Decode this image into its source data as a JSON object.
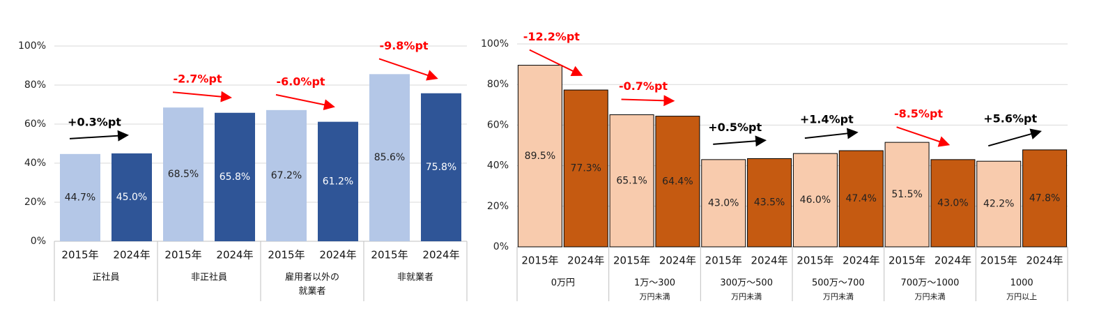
{
  "chart_data": [
    {
      "type": "bar",
      "categories": [
        [
          "正社員"
        ],
        [
          "非正社員"
        ],
        [
          "雇用者以外の",
          "就業者"
        ],
        [
          "非就業者"
        ]
      ],
      "series": [
        {
          "name": "2015年",
          "color": "#b4c7e7",
          "label_color": "#222222",
          "values": [
            44.7,
            68.5,
            67.2,
            85.6
          ],
          "value_labels": [
            "44.7%",
            "68.5%",
            "67.2%",
            "85.6%"
          ]
        },
        {
          "name": "2024年",
          "color": "#2f5597",
          "label_color": "#ffffff",
          "values": [
            45.0,
            65.8,
            61.2,
            75.8
          ],
          "value_labels": [
            "45.0%",
            "65.8%",
            "61.2%",
            "75.8%"
          ]
        }
      ],
      "annotations": [
        {
          "text": "+0.3%pt",
          "color": "#000000"
        },
        {
          "text": "-2.7%pt",
          "color": "#ff0000"
        },
        {
          "text": "-6.0%pt",
          "color": "#ff0000"
        },
        {
          "text": "-9.8%pt",
          "color": "#ff0000"
        }
      ],
      "ylim": [
        0,
        100
      ],
      "yticks": [
        {
          "value": 0,
          "label": "0%"
        },
        {
          "value": 20,
          "label": "20%"
        },
        {
          "value": 40,
          "label": "40%"
        },
        {
          "value": 60,
          "label": "60%"
        },
        {
          "value": 80,
          "label": "80%"
        },
        {
          "value": 100,
          "label": "100%"
        }
      ],
      "grid": true
    },
    {
      "type": "bar",
      "categories": [
        [
          "0万円"
        ],
        [
          "1万～300",
          "万円未満"
        ],
        [
          "300万～500",
          "万円未満"
        ],
        [
          "500万～700",
          "万円未満"
        ],
        [
          "700万～1000",
          "万円未満"
        ],
        [
          "1000",
          "万円以上"
        ]
      ],
      "series": [
        {
          "name": "2015年",
          "color": "#f8cbad",
          "label_color": "#222222",
          "values": [
            89.5,
            65.1,
            43.0,
            46.0,
            51.5,
            42.2
          ],
          "value_labels": [
            "89.5%",
            "65.1%",
            "43.0%",
            "46.0%",
            "51.5%",
            "42.2%"
          ]
        },
        {
          "name": "2024年",
          "color": "#c55a11",
          "label_color": "#222222",
          "values": [
            77.3,
            64.4,
            43.5,
            47.4,
            43.0,
            47.8
          ],
          "value_labels": [
            "77.3%",
            "64.4%",
            "43.5%",
            "47.4%",
            "43.0%",
            "47.8%"
          ]
        }
      ],
      "annotations": [
        {
          "text": "-12.2%pt",
          "color": "#ff0000"
        },
        {
          "text": "-0.7%pt",
          "color": "#ff0000"
        },
        {
          "text": "+0.5%pt",
          "color": "#000000"
        },
        {
          "text": "+1.4%pt",
          "color": "#000000"
        },
        {
          "text": "-8.5%pt",
          "color": "#ff0000"
        },
        {
          "text": "+5.6%pt",
          "color": "#000000"
        }
      ],
      "ylim": [
        0,
        100
      ],
      "yticks": [
        {
          "value": 0,
          "label": "0%"
        },
        {
          "value": 20,
          "label": "20%"
        },
        {
          "value": 40,
          "label": "40%"
        },
        {
          "value": 60,
          "label": "60%"
        },
        {
          "value": 80,
          "label": "80%"
        },
        {
          "value": 100,
          "label": "100%"
        }
      ],
      "grid": true
    }
  ]
}
